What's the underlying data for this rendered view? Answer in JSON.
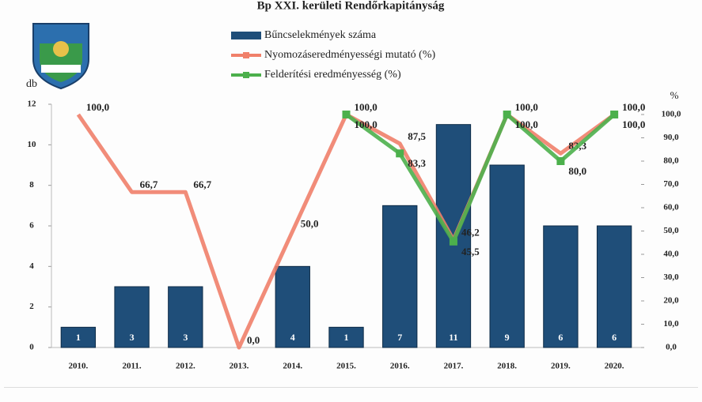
{
  "chart_data": {
    "type": "bar-line",
    "title": "Bp XXI. kerületi Rendőrkapitányság",
    "y_label": "db",
    "y2_label": "%",
    "categories": [
      "2010.",
      "2011.",
      "2012.",
      "2013.",
      "2014.",
      "2015.",
      "2016.",
      "2017.",
      "2018.",
      "2019.",
      "2020."
    ],
    "ylim": [
      0,
      12
    ],
    "yticks": [
      0,
      2,
      4,
      6,
      8,
      10,
      12
    ],
    "y2lim": [
      0,
      100
    ],
    "y2ticks": [
      {
        "value": 0,
        "label": "0,0"
      },
      {
        "value": 10,
        "label": "10,0"
      },
      {
        "value": 20,
        "label": "20,0"
      },
      {
        "value": 30,
        "label": "30,0"
      },
      {
        "value": 40,
        "label": "40,0"
      },
      {
        "value": 50,
        "label": "50,0"
      },
      {
        "value": 60,
        "label": "60,0"
      },
      {
        "value": 70,
        "label": "70,0"
      },
      {
        "value": 80,
        "label": "80,0"
      },
      {
        "value": 90,
        "label": "90,0"
      },
      {
        "value": 100,
        "label": "100,0"
      }
    ],
    "series": [
      {
        "name": "Bűncselekmények száma",
        "kind": "bar",
        "color": "#1f4e79",
        "values": [
          1,
          3,
          3,
          0,
          4,
          1,
          7,
          11,
          9,
          6,
          6
        ]
      },
      {
        "name": "Nyomozáseredményességi mutató (%)",
        "kind": "line",
        "axis": "y2",
        "color": "#f0806a",
        "values": [
          100,
          66.7,
          66.7,
          0,
          50,
          100,
          87.5,
          46.2,
          100,
          83.3,
          100
        ],
        "value_labels": [
          "100,0",
          "66,7",
          "66,7",
          "0,0",
          "50,0",
          "100,0",
          "87,5",
          "46,2",
          "100,0",
          "83,3",
          "100,0"
        ]
      },
      {
        "name": "Felderítési eredményesség (%)",
        "kind": "line",
        "axis": "y2",
        "color": "#4cb04c",
        "values": [
          null,
          null,
          null,
          null,
          null,
          100,
          83.3,
          45.5,
          100,
          80,
          100
        ],
        "value_labels": [
          null,
          null,
          null,
          null,
          null,
          "100,0",
          "83,3",
          "45,5",
          "100,0",
          "80,0",
          "100,0"
        ]
      }
    ]
  }
}
